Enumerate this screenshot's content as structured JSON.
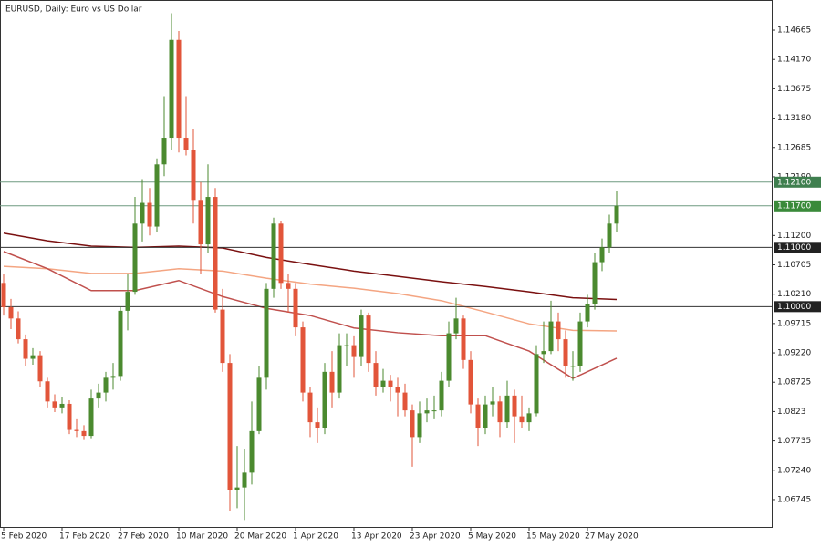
{
  "chart_data": {
    "type": "candlestick",
    "title": "EURUSD, Daily:  Euro vs US Dollar",
    "categories": [
      "5 Feb 2020",
      null,
      null,
      null,
      null,
      null,
      null,
      null,
      "17 Feb 2020",
      null,
      null,
      null,
      null,
      null,
      null,
      null,
      "27 Feb 2020",
      null,
      null,
      null,
      null,
      null,
      null,
      null,
      "10 Mar 2020",
      null,
      null,
      null,
      null,
      null,
      null,
      null,
      "20 Mar 2020",
      null,
      null,
      null,
      null,
      null,
      null,
      null,
      "1 Apr 2020",
      null,
      null,
      null,
      null,
      null,
      null,
      null,
      "13 Apr 2020",
      null,
      null,
      null,
      null,
      null,
      null,
      null,
      "23 Apr 2020",
      null,
      null,
      null,
      null,
      null,
      null,
      null,
      "5 May 2020",
      null,
      null,
      null,
      null,
      null,
      null,
      null,
      "15 May 2020",
      null,
      null,
      null,
      null,
      null,
      null,
      null,
      "27 May 2020",
      null,
      null,
      null,
      null
    ],
    "open": [
      1.104,
      1.0999,
      1.098,
      1.0945,
      1.0912,
      1.0918,
      1.0874,
      1.084,
      1.083,
      1.0836,
      1.0792,
      1.079,
      1.0782,
      1.0845,
      1.0855,
      1.088,
      1.0883,
      1.0993,
      1.1025,
      1.114,
      1.1175,
      1.1135,
      1.124,
      1.1285,
      1.145,
      1.1285,
      1.1265,
      1.118,
      1.1105,
      1.1185,
      1.0995,
      1.0905,
      1.069,
      1.0695,
      1.072,
      1.079,
      1.088,
      1.103,
      1.114,
      1.104,
      1.103,
      1.0965,
      1.0855,
      1.0805,
      1.0795,
      1.089,
      1.0855,
      1.0935,
      1.0935,
      1.0915,
      1.0985,
      1.0905,
      1.0865,
      1.0875,
      1.0865,
      1.0855,
      1.0825,
      1.078,
      1.082,
      1.0825,
      1.0825,
      1.0875,
      1.0955,
      1.098,
      1.091,
      1.0835,
      1.0795,
      1.0835,
      1.084,
      1.0805,
      1.085,
      1.0815,
      1.0805,
      1.082,
      1.092,
      1.0925,
      1.0975,
      1.0945,
      1.09,
      1.09,
      1.0975,
      1.1005,
      1.1075,
      1.11,
      1.114
    ],
    "high": [
      1.1055,
      1.1013,
      1.0992,
      1.0953,
      1.093,
      1.0925,
      1.088,
      1.0852,
      1.0848,
      1.0842,
      1.081,
      1.08,
      1.086,
      1.087,
      1.089,
      1.0905,
      1.1,
      1.1055,
      1.1185,
      1.1215,
      1.12,
      1.125,
      1.1355,
      1.1495,
      1.1465,
      1.1355,
      1.13,
      1.121,
      1.124,
      1.12,
      1.103,
      1.092,
      1.0765,
      1.076,
      1.084,
      1.09,
      1.104,
      1.115,
      1.1145,
      1.1055,
      1.104,
      1.0975,
      1.0865,
      1.083,
      1.0905,
      1.0925,
      1.0955,
      1.0955,
      1.095,
      1.0995,
      1.099,
      1.0925,
      1.0895,
      1.0885,
      1.088,
      1.087,
      1.0835,
      1.084,
      1.0845,
      1.085,
      1.089,
      1.0975,
      1.1015,
      1.0985,
      1.0925,
      1.0845,
      1.085,
      1.0865,
      1.085,
      1.0875,
      1.086,
      1.085,
      1.083,
      1.0935,
      1.0975,
      1.101,
      1.099,
      1.096,
      1.0925,
      1.099,
      1.102,
      1.109,
      1.1115,
      1.1155,
      1.1195
    ],
    "low": [
      1.0985,
      1.0962,
      1.0938,
      1.09,
      1.0902,
      1.0865,
      1.083,
      1.0822,
      1.082,
      1.0785,
      1.078,
      1.0775,
      1.0778,
      1.083,
      1.084,
      1.086,
      1.0875,
      1.096,
      1.102,
      1.111,
      1.112,
      1.1125,
      1.122,
      1.1265,
      1.126,
      1.1255,
      1.114,
      1.1055,
      1.109,
      1.099,
      1.089,
      1.0655,
      1.066,
      1.064,
      1.07,
      1.0785,
      1.086,
      1.1015,
      1.103,
      1.099,
      1.095,
      1.084,
      1.078,
      1.077,
      1.0785,
      1.083,
      1.0845,
      1.09,
      1.088,
      1.09,
      1.089,
      1.085,
      1.0855,
      1.084,
      1.0815,
      1.0815,
      1.073,
      1.077,
      1.0805,
      1.081,
      1.0815,
      1.0865,
      1.0945,
      1.0895,
      1.082,
      1.0765,
      1.0785,
      1.0815,
      1.078,
      1.0795,
      1.077,
      1.0795,
      1.079,
      1.0815,
      1.0905,
      1.092,
      1.0925,
      1.088,
      1.0875,
      1.089,
      1.0965,
      1.0995,
      1.106,
      1.109,
      1.1125
    ],
    "close": [
      1.0999,
      1.098,
      1.0945,
      1.0912,
      1.0918,
      1.0874,
      1.084,
      1.083,
      1.0836,
      1.0792,
      1.079,
      1.0782,
      1.0845,
      1.0855,
      1.088,
      1.0883,
      1.0993,
      1.1025,
      1.114,
      1.1175,
      1.1135,
      1.124,
      1.1285,
      1.145,
      1.1285,
      1.1265,
      1.118,
      1.1105,
      1.1185,
      1.0995,
      1.0905,
      1.069,
      1.0695,
      1.072,
      1.079,
      1.088,
      1.103,
      1.114,
      1.104,
      1.103,
      1.0965,
      1.0855,
      1.0805,
      1.0795,
      1.089,
      1.0855,
      1.0935,
      1.0935,
      1.0915,
      1.0985,
      1.0905,
      1.0865,
      1.0875,
      1.0865,
      1.0855,
      1.0825,
      1.078,
      1.082,
      1.0825,
      1.0825,
      1.0875,
      1.0955,
      1.098,
      1.091,
      1.0835,
      1.0795,
      1.0835,
      1.084,
      1.0805,
      1.085,
      1.0815,
      1.0805,
      1.082,
      1.092,
      1.0925,
      1.0975,
      1.0945,
      1.09,
      1.09,
      1.0975,
      1.1005,
      1.1075,
      1.11,
      1.114,
      1.117
    ],
    "up_color": "#4b8a2f",
    "down_color": "#e2553a",
    "ylim": [
      1.06283,
      1.15173
    ],
    "yticks": [
      1.06745,
      {
        "value": 1.0724,
        "label": "1.07240"
      },
      1.07735,
      1.0823,
      1.08725,
      {
        "value": 1.0922,
        "label": "1.09220"
      },
      1.09715,
      {
        "value": 1.1021,
        "label": "1.10210"
      },
      1.10705,
      {
        "value": 1.112,
        "label": "1.11200"
      },
      {
        "value": 1.1219,
        "label": "1.12190"
      },
      1.12685,
      {
        "value": 1.1318,
        "label": "1.13180"
      },
      1.13675,
      {
        "value": 1.1417,
        "label": "1.14170"
      },
      1.14665
    ],
    "levels": [
      {
        "value": 1.121,
        "label": "1.12100",
        "color": "#3f7f4f"
      },
      {
        "value": 1.117,
        "label": "1.11700",
        "color": "#3a8a3a"
      },
      {
        "value": 1.11,
        "label": "1.11000",
        "color": "#222222"
      },
      {
        "value": 1.1,
        "label": "1.10000",
        "color": "#222222"
      }
    ],
    "overlays": {
      "x": [
        0,
        6,
        12,
        18,
        24,
        30,
        36,
        42,
        48,
        54,
        60,
        66,
        72,
        78,
        84
      ],
      "series": [
        {
          "color": "#7a1010",
          "values": [
            1.1124,
            1.1111,
            1.1102,
            1.11,
            1.1102,
            1.1099,
            1.1083,
            1.1071,
            1.106,
            1.1051,
            1.1042,
            1.1034,
            1.1025,
            1.1015,
            1.1012
          ]
        },
        {
          "color": "#f4a582",
          "values": [
            1.1068,
            1.1064,
            1.1056,
            1.1056,
            1.1064,
            1.106,
            1.1048,
            1.1038,
            1.1031,
            1.1022,
            1.101,
            1.0991,
            1.0971,
            1.096,
            1.0959
          ]
        },
        {
          "color": "#c0504d",
          "values": [
            1.1093,
            1.1064,
            1.1027,
            1.1027,
            1.1044,
            1.1017,
            1.0997,
            1.0985,
            1.0964,
            1.0956,
            1.0951,
            1.0951,
            1.0925,
            1.0879,
            1.0913
          ]
        }
      ]
    }
  }
}
